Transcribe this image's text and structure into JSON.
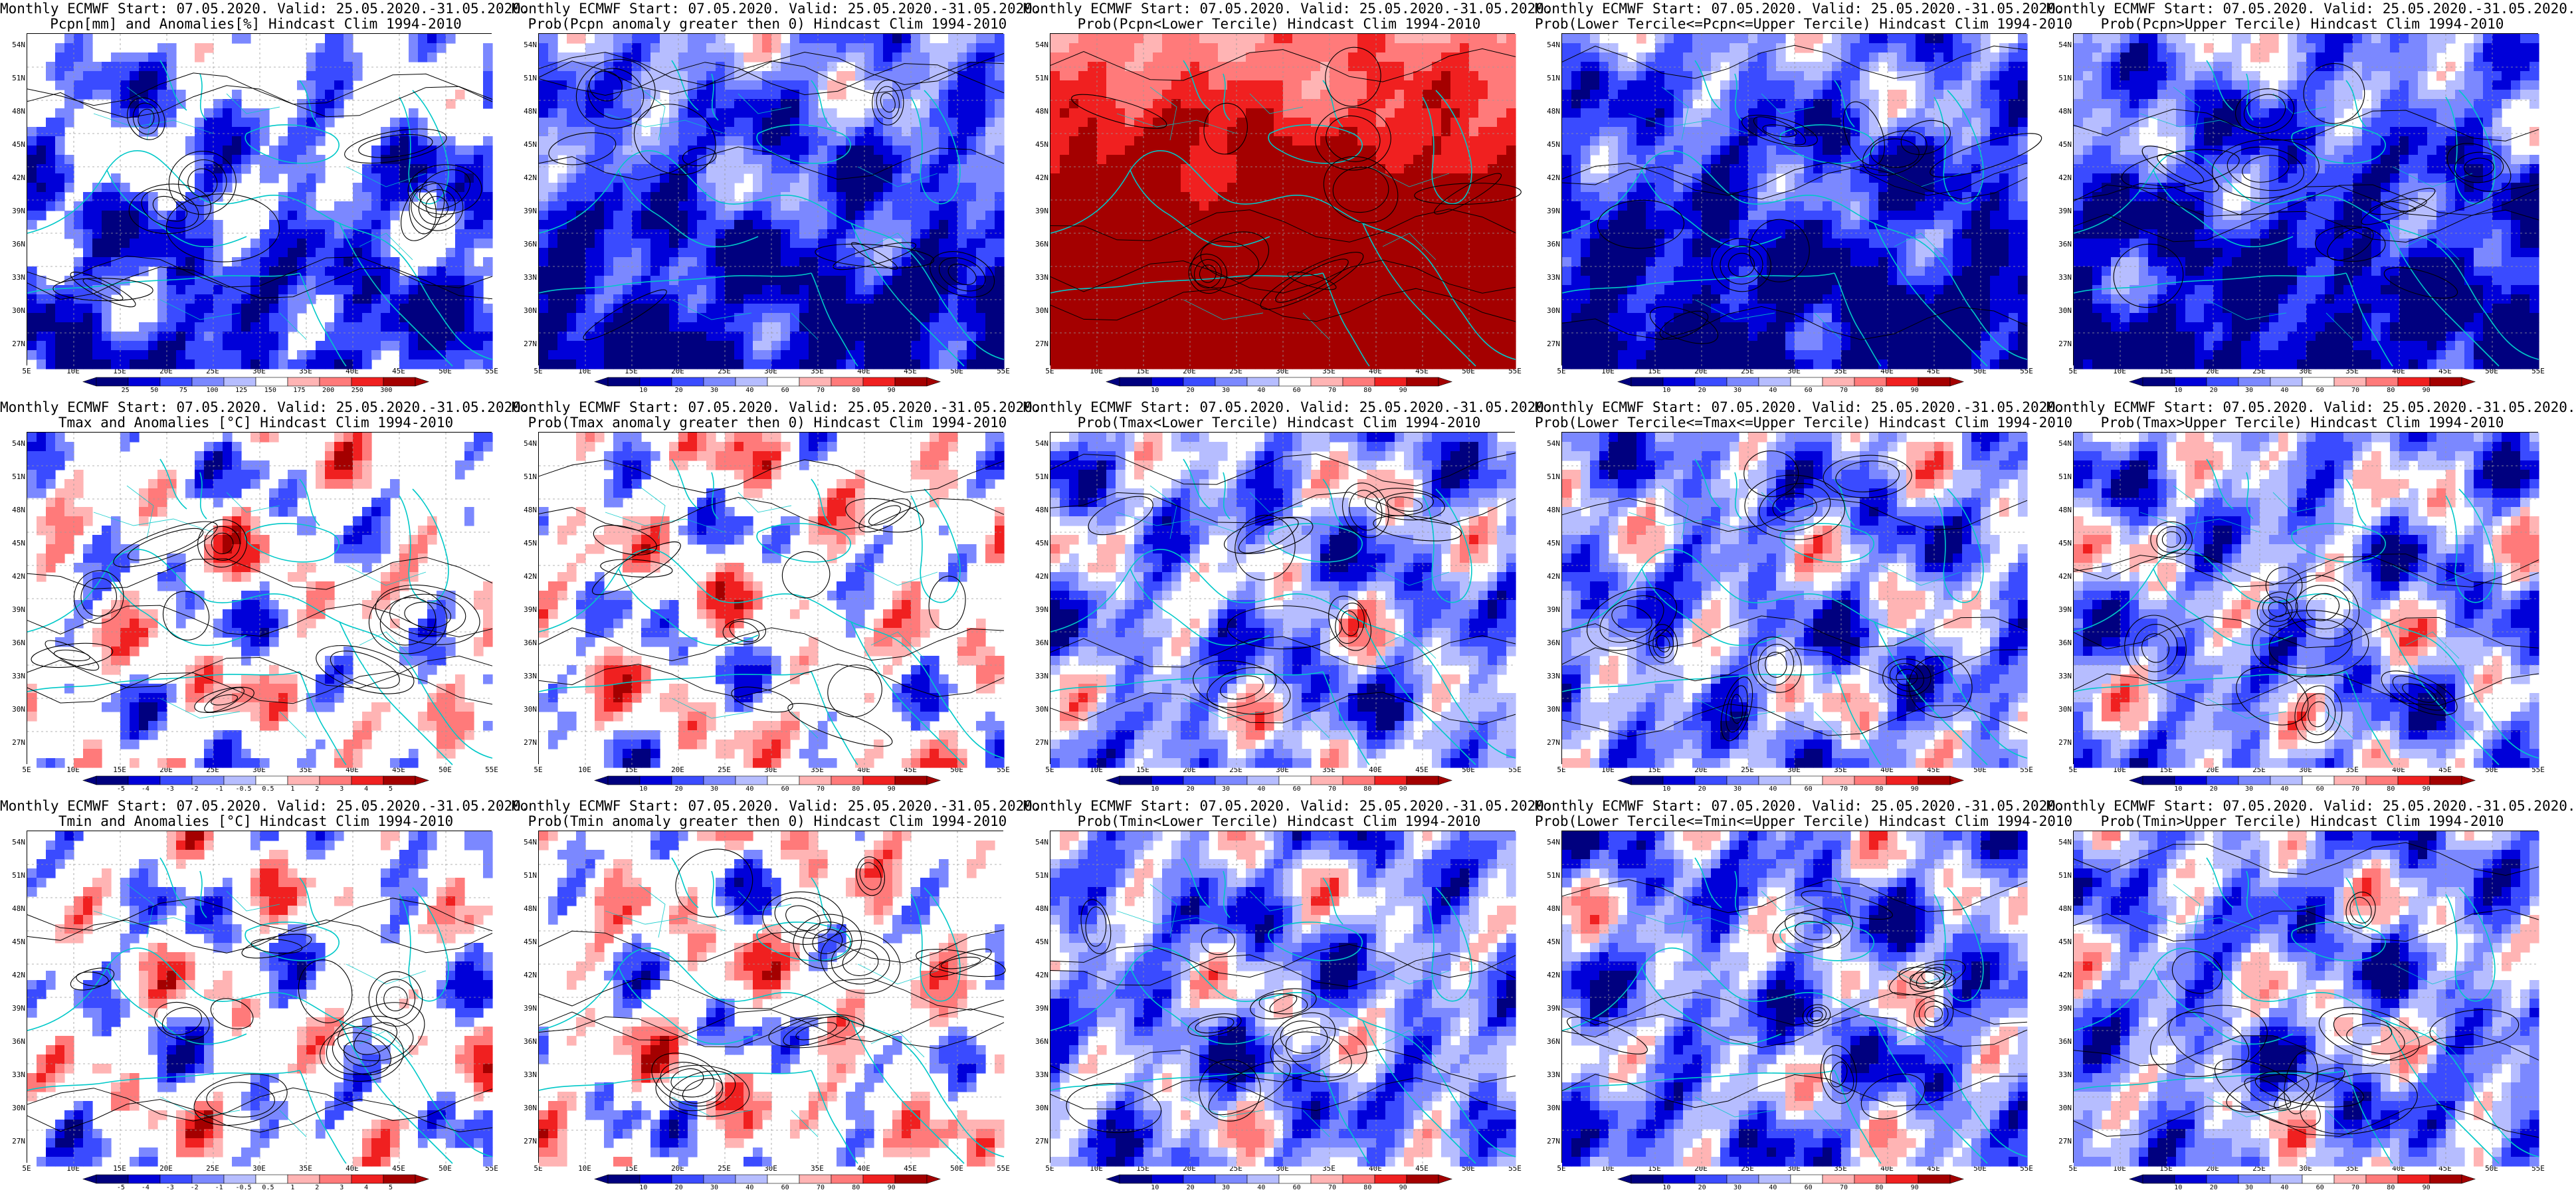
{
  "colors": {
    "scale_probability": [
      "#00007f",
      "#0000d9",
      "#3a4bff",
      "#7b88ff",
      "#b6bdff",
      "#ffffff",
      "#ffb4b4",
      "#ff7a7a",
      "#f02020",
      "#a40000"
    ],
    "scale_anomaly": [
      "#00007f",
      "#0000d9",
      "#3a4bff",
      "#7b88ff",
      "#b6bdff",
      "#ffffff",
      "#ffb4b4",
      "#ff7a7a",
      "#f02020",
      "#a40000"
    ],
    "coast": "#00c8c8",
    "contour": "#000000"
  },
  "axes": {
    "lat_labels": [
      "54N",
      "51N",
      "48N",
      "45N",
      "42N",
      "39N",
      "36N",
      "33N",
      "30N",
      "27N"
    ],
    "lon_labels": [
      "5E",
      "10E",
      "15E",
      "20E",
      "25E",
      "30E",
      "35E",
      "40E",
      "45E",
      "50E",
      "55E"
    ]
  },
  "panels": [
    {
      "row": 0,
      "col": 0,
      "title1": "Monthly ECMWF Start: 07.05.2020. Valid: 25.05.2020.-31.05.2020.",
      "title2": "Pcpn[mm] and Anomalies[%] Hindcast Clim 1994-2010",
      "bias": -0.55,
      "seed": 11,
      "white_base": true,
      "colorbar_type": "anomaly",
      "colorbar_labels": [
        "25",
        "50",
        "75",
        "100",
        "125",
        "150",
        "175",
        "200",
        "250",
        "300"
      ]
    },
    {
      "row": 0,
      "col": 1,
      "title1": "Monthly ECMWF Start: 07.05.2020. Valid: 25.05.2020.-31.05.2020.",
      "title2": "Prob(Pcpn anomaly greater then 0) Hindcast Clim 1994-2010",
      "bias": -0.75,
      "seed": 23,
      "white_base": false,
      "colorbar_type": "probability",
      "colorbar_labels": [
        "10",
        "20",
        "30",
        "40",
        "60",
        "70",
        "80",
        "90"
      ]
    },
    {
      "row": 0,
      "col": 2,
      "title1": "Monthly ECMWF Start: 07.05.2020. Valid: 25.05.2020.-31.05.2020.",
      "title2": "Prob(Pcpn<Lower Tercile) Hindcast Clim 1994-2010",
      "bias": 0.45,
      "seed": 37,
      "white_base": false,
      "colorbar_type": "probability",
      "colorbar_labels": [
        "10",
        "20",
        "30",
        "40",
        "60",
        "70",
        "80",
        "90"
      ]
    },
    {
      "row": 0,
      "col": 3,
      "title1": "Monthly ECMWF Start: 07.05.2020. Valid: 25.05.2020.-31.05.2020.",
      "title2": "Prob(Lower Tercile<=Pcpn<=Upper Tercile) Hindcast Clim 1994-2010",
      "bias": -0.85,
      "seed": 41,
      "white_base": false,
      "colorbar_type": "probability",
      "colorbar_labels": [
        "10",
        "20",
        "30",
        "40",
        "60",
        "70",
        "80",
        "90"
      ]
    },
    {
      "row": 0,
      "col": 4,
      "title1": "Monthly ECMWF Start: 07.05.2020. Valid: 25.05.2020.-31.05.2020.",
      "title2": "Prob(Pcpn>Upper Tercile) Hindcast Clim 1994-2010",
      "bias": -0.8,
      "seed": 53,
      "white_base": false,
      "colorbar_type": "probability",
      "colorbar_labels": [
        "10",
        "20",
        "30",
        "40",
        "60",
        "70",
        "80",
        "90"
      ]
    },
    {
      "row": 1,
      "col": 0,
      "title1": "Monthly ECMWF Start: 07.05.2020. Valid: 25.05.2020.-31.05.2020.",
      "title2": "Tmax and Anomalies [°C] Hindcast Clim 1994-2010",
      "bias": 0.0,
      "seed": 61,
      "white_base": true,
      "colorbar_type": "anomaly",
      "colorbar_labels": [
        "-5",
        "-4",
        "-3",
        "-2",
        "-1",
        "-0.5",
        "0.5",
        "1",
        "2",
        "3",
        "4",
        "5"
      ]
    },
    {
      "row": 1,
      "col": 1,
      "title1": "Monthly ECMWF Start: 07.05.2020. Valid: 25.05.2020.-31.05.2020.",
      "title2": "Prob(Tmax anomaly greater then 0) Hindcast Clim 1994-2010",
      "bias": 0.05,
      "seed": 71,
      "white_base": true,
      "colorbar_type": "probability",
      "colorbar_labels": [
        "10",
        "20",
        "30",
        "40",
        "60",
        "70",
        "80",
        "90"
      ]
    },
    {
      "row": 1,
      "col": 2,
      "title1": "Monthly ECMWF Start: 07.05.2020. Valid: 25.05.2020.-31.05.2020.",
      "title2": "Prob(Tmax<Lower Tercile) Hindcast Clim 1994-2010",
      "bias": -0.35,
      "seed": 83,
      "white_base": false,
      "colorbar_type": "probability",
      "colorbar_labels": [
        "10",
        "20",
        "30",
        "40",
        "60",
        "70",
        "80",
        "90"
      ]
    },
    {
      "row": 1,
      "col": 3,
      "title1": "Monthly ECMWF Start: 07.05.2020. Valid: 25.05.2020.-31.05.2020.",
      "title2": "Prob(Lower Tercile<=Tmax<=Upper Tercile) Hindcast Clim 1994-2010",
      "bias": -0.4,
      "seed": 97,
      "white_base": false,
      "colorbar_type": "probability",
      "colorbar_labels": [
        "10",
        "20",
        "30",
        "40",
        "60",
        "70",
        "80",
        "90"
      ]
    },
    {
      "row": 1,
      "col": 4,
      "title1": "Monthly ECMWF Start: 07.05.2020. Valid: 25.05.2020.-31.05.2020.",
      "title2": "Prob(Tmax>Upper Tercile) Hindcast Clim 1994-2010",
      "bias": -0.35,
      "seed": 101,
      "white_base": false,
      "colorbar_type": "probability",
      "colorbar_labels": [
        "10",
        "20",
        "30",
        "40",
        "60",
        "70",
        "80",
        "90"
      ]
    },
    {
      "row": 2,
      "col": 0,
      "title1": "Monthly ECMWF Start: 07.05.2020. Valid: 25.05.2020.-31.05.2020.",
      "title2": "Tmin and Anomalies [°C] Hindcast Clim 1994-2010",
      "bias": -0.05,
      "seed": 113,
      "white_base": true,
      "colorbar_type": "anomaly",
      "colorbar_labels": [
        "-5",
        "-4",
        "-3",
        "-2",
        "-1",
        "-0.5",
        "0.5",
        "1",
        "2",
        "3",
        "4",
        "5"
      ]
    },
    {
      "row": 2,
      "col": 1,
      "title1": "Monthly ECMWF Start: 07.05.2020. Valid: 25.05.2020.-31.05.2020.",
      "title2": "Prob(Tmin anomaly greater then 0) Hindcast Clim 1994-2010",
      "bias": 0.05,
      "seed": 127,
      "white_base": true,
      "colorbar_type": "probability",
      "colorbar_labels": [
        "10",
        "20",
        "30",
        "40",
        "60",
        "70",
        "80",
        "90"
      ]
    },
    {
      "row": 2,
      "col": 2,
      "title1": "Monthly ECMWF Start: 07.05.2020. Valid: 25.05.2020.-31.05.2020.",
      "title2": "Prob(Tmin<Lower Tercile) Hindcast Clim 1994-2010",
      "bias": -0.4,
      "seed": 131,
      "white_base": false,
      "colorbar_type": "probability",
      "colorbar_labels": [
        "10",
        "20",
        "30",
        "40",
        "60",
        "70",
        "80",
        "90"
      ]
    },
    {
      "row": 2,
      "col": 3,
      "title1": "Monthly ECMWF Start: 07.05.2020. Valid: 25.05.2020.-31.05.2020.",
      "title2": "Prob(Lower Tercile<=Tmin<=Upper Tercile) Hindcast Clim 1994-2010",
      "bias": -0.45,
      "seed": 139,
      "white_base": false,
      "colorbar_type": "probability",
      "colorbar_labels": [
        "10",
        "20",
        "30",
        "40",
        "60",
        "70",
        "80",
        "90"
      ]
    },
    {
      "row": 2,
      "col": 4,
      "title1": "Monthly ECMWF Start: 07.05.2020. Valid: 25.05.2020.-31.05.2020.",
      "title2": "Prob(Tmin>Upper Tercile) Hindcast Clim 1994-2010",
      "bias": -0.4,
      "seed": 149,
      "white_base": false,
      "colorbar_type": "probability",
      "colorbar_labels": [
        "10",
        "20",
        "30",
        "40",
        "60",
        "70",
        "80",
        "90"
      ]
    }
  ]
}
